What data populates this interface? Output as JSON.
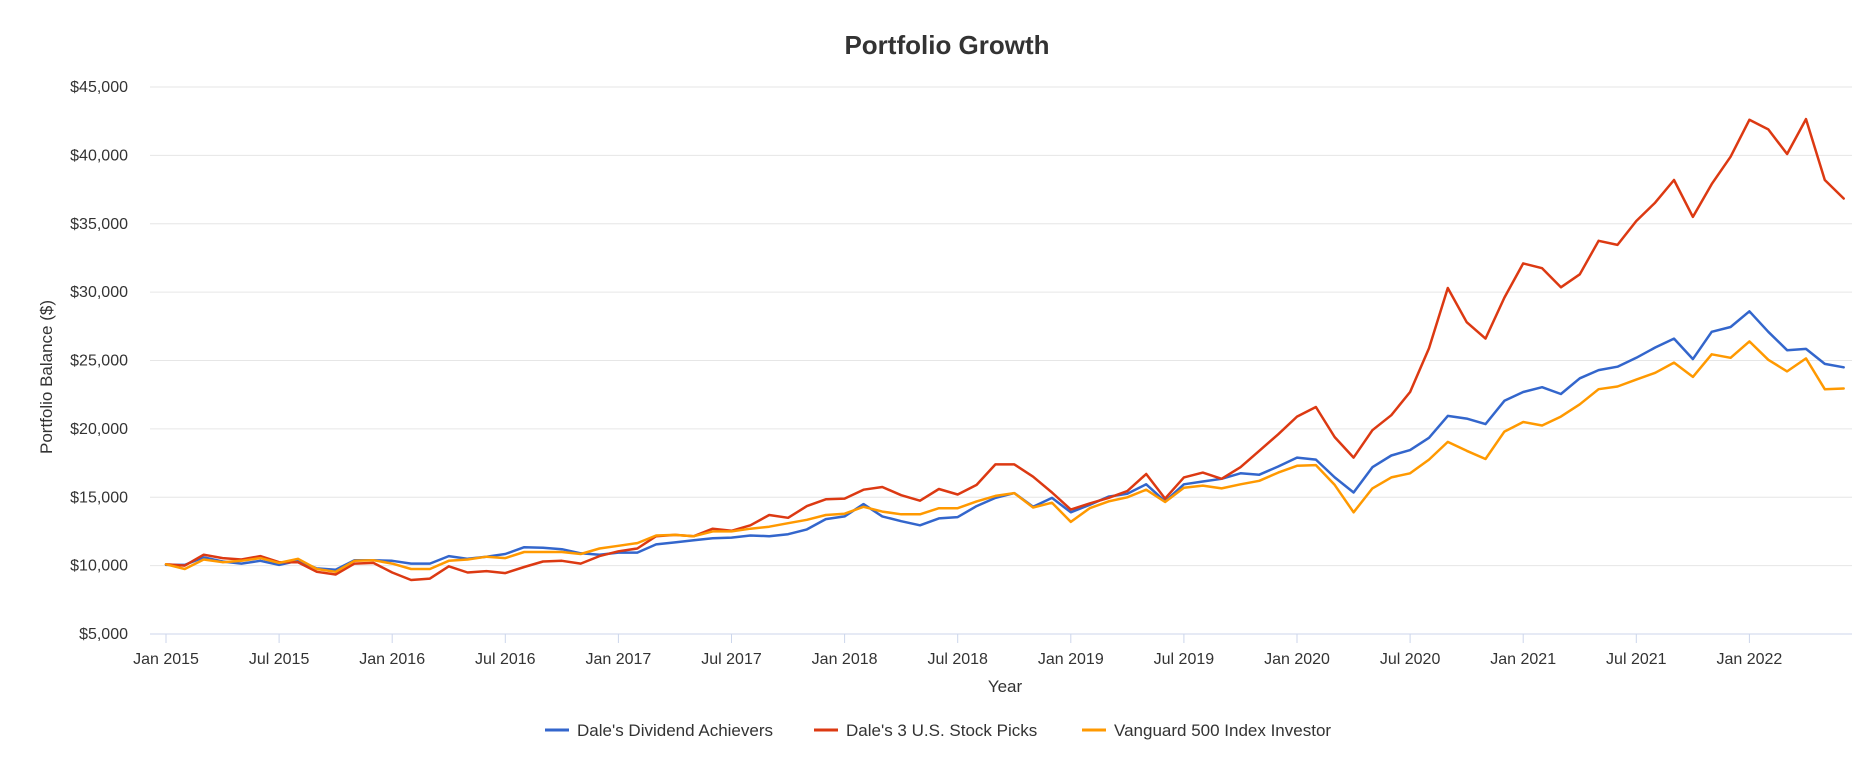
{
  "chart_data": {
    "type": "line",
    "title": "Portfolio Growth",
    "xlabel": "Year",
    "ylabel": "Portfolio Balance ($)",
    "ylim": [
      5000,
      45000
    ],
    "y_ticks": [
      5000,
      10000,
      15000,
      20000,
      25000,
      30000,
      35000,
      40000,
      45000
    ],
    "y_tick_labels": [
      "$5,000",
      "$10,000",
      "$15,000",
      "$20,000",
      "$25,000",
      "$30,000",
      "$35,000",
      "$40,000",
      "$45,000"
    ],
    "x_start": "Jan 2015",
    "x_tick_labels": [
      "Jan 2015",
      "Jul 2015",
      "Jan 2016",
      "Jul 2016",
      "Jan 2017",
      "Jul 2017",
      "Jan 2018",
      "Jul 2018",
      "Jan 2019",
      "Jul 2019",
      "Jan 2020",
      "Jul 2020",
      "Jan 2021",
      "Jul 2021",
      "Jan 2022"
    ],
    "grid": true,
    "legend_position": "bottom-center",
    "series": [
      {
        "name": "Dale's Dividend Achievers",
        "color": "#3366cc",
        "values": [
          10050,
          10050,
          10600,
          10300,
          10150,
          10350,
          10050,
          10350,
          9800,
          9700,
          10400,
          10400,
          10350,
          10150,
          10150,
          10700,
          10500,
          10650,
          10850,
          11350,
          11300,
          11200,
          10900,
          10800,
          10950,
          10950,
          11550,
          11700,
          11850,
          12000,
          12050,
          12200,
          12150,
          12300,
          12650,
          13400,
          13600,
          14500,
          13600,
          13250,
          12950,
          13450,
          13550,
          14350,
          14950,
          15300,
          14300,
          14950,
          13900,
          14450,
          15050,
          15250,
          15950,
          14700,
          15950,
          16150,
          16350,
          16750,
          16650,
          17250,
          17900,
          17750,
          16450,
          15350,
          17200,
          18050,
          18450,
          19350,
          20950,
          20750,
          20350,
          22050,
          22700,
          23050,
          22550,
          23700,
          24300,
          24550,
          25200,
          25950,
          26600,
          25100,
          27100,
          27450,
          28600,
          27100,
          25750,
          25850,
          24750,
          24500
        ]
      },
      {
        "name": "Dale's 3 U.S. Stock Picks",
        "color": "#dc3912",
        "values": [
          10100,
          10000,
          10800,
          10550,
          10450,
          10700,
          10250,
          10250,
          9550,
          9350,
          10150,
          10200,
          9500,
          8950,
          9050,
          9950,
          9500,
          9600,
          9450,
          9900,
          10300,
          10350,
          10150,
          10700,
          11050,
          11250,
          12150,
          12250,
          12150,
          12700,
          12550,
          12950,
          13700,
          13500,
          14350,
          14850,
          14900,
          15550,
          15750,
          15150,
          14750,
          15600,
          15200,
          15900,
          17400,
          17400,
          16500,
          15350,
          14100,
          14550,
          14950,
          15450,
          16700,
          14900,
          16450,
          16800,
          16350,
          17200,
          18400,
          19600,
          20900,
          21600,
          19400,
          17900,
          19900,
          21000,
          22700,
          25900,
          30300,
          27800,
          26600,
          29600,
          32100,
          31750,
          30350,
          31300,
          33750,
          33450,
          35200,
          36550,
          38200,
          35500,
          37900,
          39900,
          42600,
          41900,
          40100,
          42650,
          38200,
          36850
        ]
      },
      {
        "name": "Vanguard 500 Index Investor",
        "color": "#ff9900",
        "values": [
          10100,
          9750,
          10450,
          10250,
          10350,
          10550,
          10200,
          10500,
          9750,
          9550,
          10350,
          10400,
          10150,
          9750,
          9750,
          10350,
          10450,
          10650,
          10550,
          11000,
          11000,
          11000,
          10850,
          11250,
          11450,
          11650,
          12200,
          12250,
          12150,
          12500,
          12500,
          12700,
          12850,
          13100,
          13350,
          13700,
          13800,
          14300,
          13950,
          13750,
          13750,
          14200,
          14200,
          14700,
          15100,
          15300,
          14250,
          14600,
          13200,
          14200,
          14700,
          15000,
          15550,
          14650,
          15700,
          15850,
          15650,
          15950,
          16200,
          16800,
          17300,
          17350,
          15900,
          13900,
          15650,
          16450,
          16750,
          17750,
          19050,
          18400,
          17800,
          19800,
          20500,
          20250,
          20900,
          21800,
          22900,
          23100,
          23600,
          24100,
          24850,
          23800,
          25450,
          25200,
          26400,
          25050,
          24200,
          25150,
          22900,
          22950
        ]
      }
    ]
  }
}
